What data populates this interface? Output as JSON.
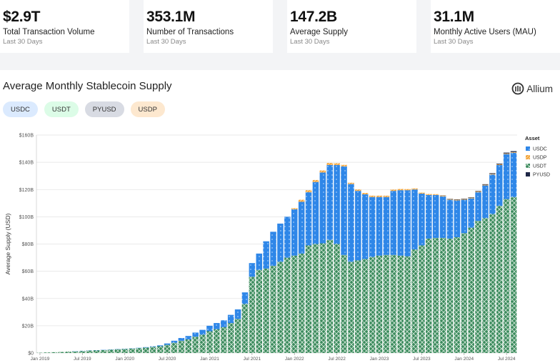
{
  "kpis": [
    {
      "value": "$2.9T",
      "label": "Total Transaction Volume",
      "sub": "Last 30 Days"
    },
    {
      "value": "353.1M",
      "label": "Number of Transactions",
      "sub": "Last 30 Days"
    },
    {
      "value": "147.2B",
      "label": "Average Supply",
      "sub": "Last 30 Days"
    },
    {
      "value": "31.1M",
      "label": "Monthly Active Users (MAU)",
      "sub": "Last 30 Days"
    }
  ],
  "panel": {
    "title": "Average Monthly Stablecoin Supply",
    "logo_text": "Allium",
    "logo_icon": "allium-logo-icon"
  },
  "chips": [
    {
      "label": "USDC",
      "color": "#dbeafe"
    },
    {
      "label": "USDT",
      "color": "#dcfce7"
    },
    {
      "label": "PYUSD",
      "color": "#d8dbe3"
    },
    {
      "label": "USDP",
      "color": "#fde8cf"
    }
  ],
  "chart_data": {
    "type": "bar",
    "stacked": true,
    "title": "",
    "xlabel": "",
    "ylabel": "Average Supply (USD)",
    "ylim": [
      0,
      160
    ],
    "yticks": [
      0,
      20,
      40,
      60,
      80,
      100,
      120,
      140,
      160
    ],
    "ytick_labels": [
      "$0",
      "$20B",
      "$40B",
      "$60B",
      "$80B",
      "$100B",
      "$120B",
      "$140B",
      "$160B"
    ],
    "x_ticks": [
      {
        "label": "Jan 2019",
        "index": 0
      },
      {
        "label": "Jul 2019",
        "index": 6
      },
      {
        "label": "Jan 2020",
        "index": 12
      },
      {
        "label": "Jul 2020",
        "index": 18
      },
      {
        "label": "Jan 2021",
        "index": 24
      },
      {
        "label": "Jul 2021",
        "index": 30
      },
      {
        "label": "Jan 2022",
        "index": 36
      },
      {
        "label": "Jul 2022",
        "index": 42
      },
      {
        "label": "Jan 2023",
        "index": 48
      },
      {
        "label": "Jul 2023",
        "index": 54
      },
      {
        "label": "Jan 2024",
        "index": 60
      },
      {
        "label": "Jul 2024",
        "index": 66
      }
    ],
    "legend_title": "Asset",
    "legend_position": "right",
    "categories": [
      "2019-01",
      "2019-02",
      "2019-03",
      "2019-04",
      "2019-05",
      "2019-06",
      "2019-07",
      "2019-08",
      "2019-09",
      "2019-10",
      "2019-11",
      "2019-12",
      "2020-01",
      "2020-02",
      "2020-03",
      "2020-04",
      "2020-05",
      "2020-06",
      "2020-07",
      "2020-08",
      "2020-09",
      "2020-10",
      "2020-11",
      "2020-12",
      "2021-01",
      "2021-02",
      "2021-03",
      "2021-04",
      "2021-05",
      "2021-06",
      "2021-07",
      "2021-08",
      "2021-09",
      "2021-10",
      "2021-11",
      "2021-12",
      "2022-01",
      "2022-02",
      "2022-03",
      "2022-04",
      "2022-05",
      "2022-06",
      "2022-07",
      "2022-08",
      "2022-09",
      "2022-10",
      "2022-11",
      "2022-12",
      "2023-01",
      "2023-02",
      "2023-03",
      "2023-04",
      "2023-05",
      "2023-06",
      "2023-07",
      "2023-08",
      "2023-09",
      "2023-10",
      "2023-11",
      "2023-12",
      "2024-01",
      "2024-02",
      "2024-03",
      "2024-04",
      "2024-05",
      "2024-06",
      "2024-07",
      "2024-08"
    ],
    "series": [
      {
        "name": "USDT",
        "color": "#3a8a5c",
        "values": [
          0.2,
          0.4,
          0.6,
          0.8,
          1.0,
          1.2,
          1.5,
          1.8,
          2.0,
          2.2,
          2.5,
          2.8,
          3.0,
          3.3,
          3.6,
          4.0,
          4.5,
          5.0,
          6.0,
          7.5,
          9.0,
          10.0,
          12.0,
          13.5,
          16.0,
          17.5,
          19.0,
          22.0,
          25.0,
          36.0,
          56.0,
          61.0,
          62.0,
          64.0,
          67.0,
          70.0,
          71.5,
          73.0,
          79.0,
          80.0,
          80.5,
          83.0,
          80.0,
          72.0,
          67.0,
          68.0,
          69.0,
          70.5,
          71.5,
          72.0,
          72.0,
          71.5,
          71.0,
          76.0,
          79.0,
          84.0,
          84.5,
          84.5,
          84.0,
          85.0,
          88.0,
          92.0,
          97.0,
          99.0,
          102.0,
          108.0,
          113.0,
          114.5
        ]
      },
      {
        "name": "USDC",
        "color": "#2f87e8",
        "values": [
          0.0,
          0.0,
          0.0,
          0.0,
          0.0,
          0.1,
          0.1,
          0.1,
          0.1,
          0.1,
          0.1,
          0.1,
          0.1,
          0.1,
          0.2,
          0.3,
          0.4,
          0.6,
          1.0,
          1.5,
          2.0,
          2.5,
          3.0,
          3.5,
          4.0,
          4.5,
          5.0,
          6.0,
          7.0,
          8.5,
          10.0,
          12.0,
          20.0,
          25.0,
          28.0,
          30.0,
          34.0,
          38.0,
          39.0,
          45.5,
          52.0,
          55.0,
          58.0,
          65.0,
          57.0,
          51.0,
          47.5,
          44.0,
          43.0,
          42.5,
          47.0,
          48.0,
          48.5,
          44.0,
          38.0,
          32.0,
          31.5,
          30.5,
          28.5,
          27.0,
          24.5,
          21.5,
          21.0,
          24.0,
          29.0,
          30.0,
          33.0,
          32.5
        ]
      },
      {
        "name": "USDP",
        "color": "#f2a33a",
        "values": [
          0,
          0,
          0,
          0,
          0,
          0,
          0,
          0,
          0,
          0,
          0,
          0,
          0,
          0,
          0,
          0,
          0,
          0,
          0,
          0,
          0,
          0,
          0,
          0,
          0,
          0,
          0,
          0,
          0,
          0,
          0,
          0,
          0,
          0,
          0,
          0,
          0.8,
          1.5,
          1.5,
          1.5,
          1.5,
          1.5,
          1.3,
          1.1,
          1.0,
          1.0,
          1.0,
          1.0,
          1.0,
          1.0,
          0.9,
          0.9,
          0.8,
          0.8,
          0.7,
          0.7,
          0.6,
          0.6,
          0.5,
          0.5,
          0.5,
          0.5,
          0.5,
          0.5,
          0.5,
          0.5,
          0.5,
          0.5
        ]
      },
      {
        "name": "PYUSD",
        "color": "#1e2746",
        "values": [
          0,
          0,
          0,
          0,
          0,
          0,
          0,
          0,
          0,
          0,
          0,
          0,
          0,
          0,
          0,
          0,
          0,
          0,
          0,
          0,
          0,
          0,
          0,
          0,
          0,
          0,
          0,
          0,
          0,
          0,
          0,
          0,
          0,
          0,
          0,
          0,
          0,
          0,
          0,
          0,
          0,
          0,
          0,
          0,
          0,
          0,
          0,
          0,
          0,
          0,
          0,
          0,
          0,
          0,
          0,
          0,
          0,
          0.1,
          0.2,
          0.3,
          0.3,
          0.3,
          0.4,
          0.4,
          0.5,
          0.5,
          0.6,
          0.7
        ]
      }
    ],
    "legend_entries": [
      {
        "name": "USDC",
        "color": "#2f87e8"
      },
      {
        "name": "USDP",
        "color": "#f2a33a"
      },
      {
        "name": "USDT",
        "color": "#3a8a5c"
      },
      {
        "name": "PYUSD",
        "color": "#1e2746"
      }
    ]
  }
}
